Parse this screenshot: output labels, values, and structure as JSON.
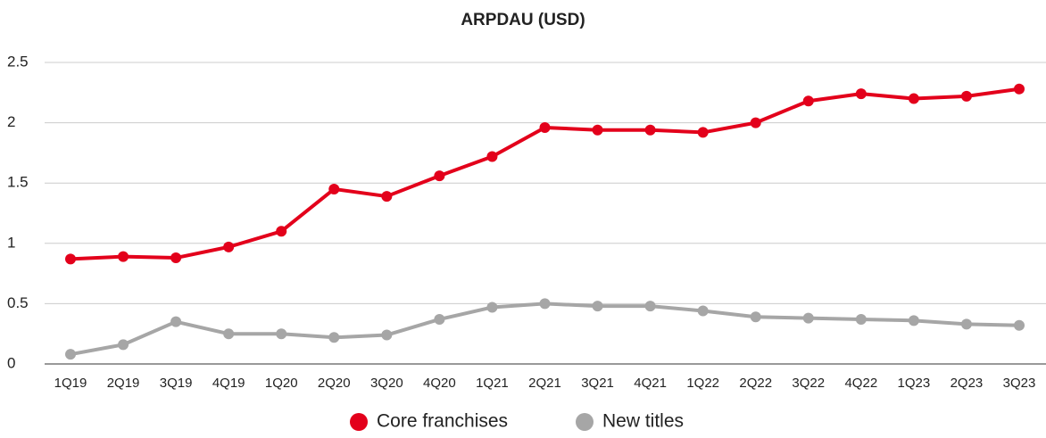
{
  "chart_data": {
    "type": "line",
    "title": "ARPDAU (USD)",
    "categories": [
      "1Q19",
      "2Q19",
      "3Q19",
      "4Q19",
      "1Q20",
      "2Q20",
      "3Q20",
      "4Q20",
      "1Q21",
      "2Q21",
      "3Q21",
      "4Q21",
      "1Q22",
      "2Q22",
      "3Q22",
      "4Q22",
      "1Q23",
      "2Q23",
      "3Q23"
    ],
    "series": [
      {
        "name": "Core franchises",
        "color": "#e3001b",
        "values": [
          0.87,
          0.89,
          0.88,
          0.97,
          1.1,
          1.45,
          1.39,
          1.56,
          1.72,
          1.96,
          1.94,
          1.94,
          1.92,
          2.0,
          2.18,
          2.24,
          2.2,
          2.22,
          2.28
        ]
      },
      {
        "name": "New titles",
        "color": "#a6a6a6",
        "values": [
          0.08,
          0.16,
          0.35,
          0.25,
          0.25,
          0.22,
          0.24,
          0.37,
          0.47,
          0.5,
          0.48,
          0.48,
          0.44,
          0.39,
          0.38,
          0.37,
          0.36,
          0.33,
          0.32
        ]
      }
    ],
    "ylim": [
      0,
      2.5
    ],
    "yticks": [
      0,
      0.5,
      1,
      1.5,
      2,
      2.5
    ],
    "grid": true,
    "legend": "bottom"
  }
}
